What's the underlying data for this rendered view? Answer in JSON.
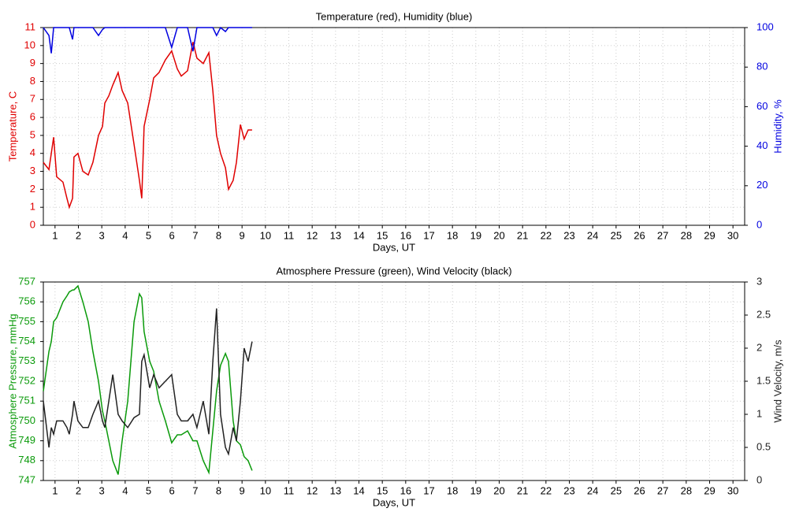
{
  "chart_data": [
    {
      "type": "line",
      "title": "Temperature (red), Humidity (blue)",
      "xlabel": "Days, UT",
      "ylabel": "Temperature, C",
      "y2label": "Humidity, %",
      "xlim": [
        1,
        31
      ],
      "xticks": [
        {
          "value": 1.5,
          "label": "1"
        },
        {
          "value": 2.5,
          "label": "2"
        },
        {
          "value": 3.5,
          "label": "3"
        },
        {
          "value": 4.5,
          "label": "4"
        },
        {
          "value": 5.5,
          "label": "5"
        },
        {
          "value": 6.5,
          "label": "6"
        },
        {
          "value": 7.5,
          "label": "7"
        },
        {
          "value": 8.5,
          "label": "8"
        },
        {
          "value": 9.5,
          "label": "9"
        },
        {
          "value": 10.5,
          "label": "10"
        },
        {
          "value": 11.5,
          "label": "11"
        },
        {
          "value": 12.5,
          "label": "12"
        },
        {
          "value": 13.5,
          "label": "13"
        },
        {
          "value": 14.5,
          "label": "14"
        },
        {
          "value": 15.5,
          "label": "15"
        },
        {
          "value": 16.5,
          "label": "16"
        },
        {
          "value": 17.5,
          "label": "17"
        },
        {
          "value": 18.5,
          "label": "18"
        },
        {
          "value": 19.5,
          "label": "19"
        },
        {
          "value": 20.5,
          "label": "20"
        },
        {
          "value": 21.5,
          "label": "21"
        },
        {
          "value": 22.5,
          "label": "22"
        },
        {
          "value": 23.5,
          "label": "23"
        },
        {
          "value": 24.5,
          "label": "24"
        },
        {
          "value": 25.5,
          "label": "25"
        },
        {
          "value": 26.5,
          "label": "26"
        },
        {
          "value": 27.5,
          "label": "27"
        },
        {
          "value": 28.5,
          "label": "28"
        },
        {
          "value": 29.5,
          "label": "29"
        },
        {
          "value": 30.5,
          "label": "30"
        }
      ],
      "ylim": [
        0,
        11
      ],
      "yticks": [
        0,
        1,
        2,
        3,
        4,
        5,
        6,
        7,
        8,
        9,
        10,
        11
      ],
      "y2lim": [
        0,
        100
      ],
      "y2ticks": [
        0,
        20,
        40,
        60,
        80,
        100
      ],
      "grid": true,
      "x": [
        1.0,
        1.24,
        1.34,
        1.44,
        1.57,
        1.84,
        2.01,
        2.11,
        2.25,
        2.31,
        2.48,
        2.69,
        2.92,
        3.12,
        3.36,
        3.53,
        3.63,
        3.8,
        3.97,
        4.2,
        4.37,
        4.61,
        4.88,
        5.11,
        5.21,
        5.31,
        5.55,
        5.72,
        5.95,
        6.22,
        6.49,
        6.73,
        6.9,
        7.17,
        7.4,
        7.57,
        7.84,
        8.08,
        8.25,
        8.41,
        8.58,
        8.79,
        8.92,
        9.12,
        9.26,
        9.43,
        9.59,
        9.76,
        9.93
      ],
      "series": [
        {
          "name": "Temperature",
          "color": "#e00000",
          "values": [
            3.5,
            3.1,
            4.0,
            4.9,
            2.7,
            2.4,
            1.5,
            1.0,
            1.5,
            3.8,
            4.0,
            3.0,
            2.8,
            3.5,
            5.0,
            5.5,
            6.8,
            7.2,
            7.8,
            8.5,
            7.5,
            6.8,
            4.5,
            2.5,
            1.5,
            5.5,
            7.0,
            8.2,
            8.5,
            9.2,
            9.7,
            8.7,
            8.3,
            8.6,
            10.2,
            9.3,
            9.0,
            9.6,
            7.5,
            5.0,
            4.0,
            3.2,
            2.0,
            2.5,
            3.5,
            5.6,
            4.8,
            5.3,
            5.3
          ]
        },
        {
          "name": "Humidity",
          "color": "#0000e0",
          "axis": "y2",
          "values": [
            100,
            96,
            87,
            100,
            100,
            100,
            100,
            100,
            94,
            100,
            100,
            100,
            100,
            100,
            96,
            99,
            100,
            100,
            100,
            100,
            100,
            100,
            100,
            100,
            100,
            100,
            100,
            100,
            100,
            100,
            90,
            100,
            100,
            100,
            88,
            100,
            100,
            100,
            100,
            96,
            100,
            98,
            100,
            100,
            100,
            100,
            100,
            100,
            100
          ]
        }
      ]
    },
    {
      "type": "line",
      "title": "Atmosphere Pressure (green), Wind Velocity (black)",
      "xlabel": "Days, UT",
      "ylabel": "Atmosphere Pressure, mmHg",
      "y2label": "Wind Velocity, m/s",
      "xlim": [
        1,
        31
      ],
      "xticks": [
        {
          "value": 1.5,
          "label": "1"
        },
        {
          "value": 2.5,
          "label": "2"
        },
        {
          "value": 3.5,
          "label": "3"
        },
        {
          "value": 4.5,
          "label": "4"
        },
        {
          "value": 5.5,
          "label": "5"
        },
        {
          "value": 6.5,
          "label": "6"
        },
        {
          "value": 7.5,
          "label": "7"
        },
        {
          "value": 8.5,
          "label": "8"
        },
        {
          "value": 9.5,
          "label": "9"
        },
        {
          "value": 10.5,
          "label": "10"
        },
        {
          "value": 11.5,
          "label": "11"
        },
        {
          "value": 12.5,
          "label": "12"
        },
        {
          "value": 13.5,
          "label": "13"
        },
        {
          "value": 14.5,
          "label": "14"
        },
        {
          "value": 15.5,
          "label": "15"
        },
        {
          "value": 16.5,
          "label": "16"
        },
        {
          "value": 17.5,
          "label": "17"
        },
        {
          "value": 18.5,
          "label": "18"
        },
        {
          "value": 19.5,
          "label": "19"
        },
        {
          "value": 20.5,
          "label": "20"
        },
        {
          "value": 21.5,
          "label": "21"
        },
        {
          "value": 22.5,
          "label": "22"
        },
        {
          "value": 23.5,
          "label": "23"
        },
        {
          "value": 24.5,
          "label": "24"
        },
        {
          "value": 25.5,
          "label": "25"
        },
        {
          "value": 26.5,
          "label": "26"
        },
        {
          "value": 27.5,
          "label": "27"
        },
        {
          "value": 28.5,
          "label": "28"
        },
        {
          "value": 29.5,
          "label": "29"
        },
        {
          "value": 30.5,
          "label": "30"
        }
      ],
      "ylim": [
        747,
        757
      ],
      "yticks": [
        747,
        748,
        749,
        750,
        751,
        752,
        753,
        754,
        755,
        756,
        757
      ],
      "y2lim": [
        0,
        3
      ],
      "y2ticks": [
        0,
        0.5,
        1,
        1.5,
        2,
        2.5,
        3
      ],
      "grid": true,
      "x": [
        1.0,
        1.24,
        1.34,
        1.44,
        1.57,
        1.84,
        2.01,
        2.11,
        2.25,
        2.31,
        2.48,
        2.69,
        2.92,
        3.12,
        3.36,
        3.53,
        3.63,
        3.8,
        3.97,
        4.2,
        4.37,
        4.61,
        4.88,
        5.11,
        5.21,
        5.31,
        5.55,
        5.72,
        5.95,
        6.22,
        6.49,
        6.73,
        6.9,
        7.17,
        7.4,
        7.57,
        7.84,
        8.08,
        8.25,
        8.41,
        8.58,
        8.79,
        8.92,
        9.12,
        9.26,
        9.43,
        9.59,
        9.76,
        9.93
      ],
      "series": [
        {
          "name": "Atmosphere Pressure",
          "color": "#0a9a0a",
          "values": [
            751.5,
            753.5,
            754,
            755,
            755.2,
            756,
            756.3,
            756.5,
            756.6,
            756.6,
            756.8,
            756,
            755,
            753.5,
            752,
            750.5,
            750,
            749,
            748,
            747.3,
            749,
            751,
            755,
            756.4,
            756.2,
            754.5,
            753,
            752.5,
            751,
            750,
            748.9,
            749.3,
            749.3,
            749.5,
            749,
            749,
            748,
            747.4,
            749.5,
            751.5,
            752.8,
            753.4,
            753,
            750,
            749,
            748.8,
            748.2,
            748,
            747.5
          ]
        },
        {
          "name": "Wind Velocity",
          "color": "#222222",
          "axis": "y2",
          "values": [
            1.2,
            0.5,
            0.8,
            0.7,
            0.9,
            0.9,
            0.8,
            0.7,
            1.0,
            1.2,
            0.9,
            0.8,
            0.8,
            1.0,
            1.2,
            0.9,
            0.8,
            1.2,
            1.6,
            1.0,
            0.9,
            0.8,
            0.95,
            1.0,
            1.8,
            1.9,
            1.4,
            1.6,
            1.4,
            1.5,
            1.6,
            1.0,
            0.9,
            0.9,
            1.0,
            0.8,
            1.2,
            0.7,
            1.8,
            2.6,
            1.0,
            0.5,
            0.4,
            0.8,
            0.6,
            1.2,
            2.0,
            1.8,
            2.1
          ]
        }
      ]
    }
  ]
}
